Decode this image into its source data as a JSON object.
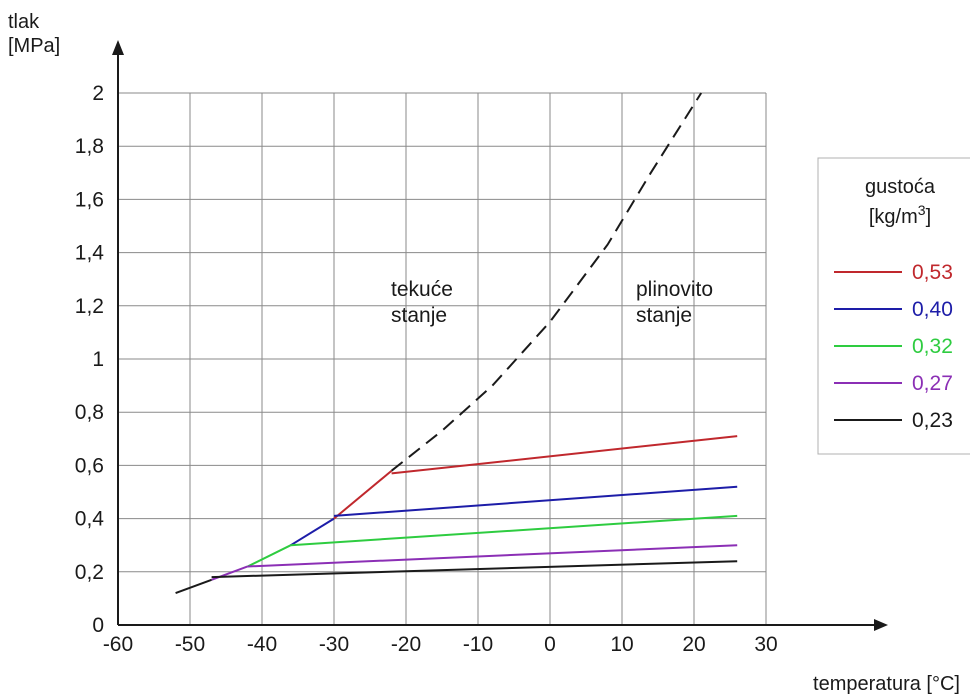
{
  "chart_data": {
    "type": "line",
    "ylabel_line1": "tlak",
    "ylabel_line2": "[MPa]",
    "xlabel": "temperatura [°C]",
    "xlim": [
      -60,
      30
    ],
    "ylim": [
      0,
      2
    ],
    "grid": true,
    "x_ticks": [
      "-60",
      "-50",
      "-40",
      "-30",
      "-20",
      "-10",
      "0",
      "10",
      "20",
      "30"
    ],
    "y_ticks": [
      "0",
      "0,2",
      "0,4",
      "0,6",
      "0,8",
      "1",
      "1,2",
      "1,4",
      "1,6",
      "1,8",
      "2"
    ],
    "regions": {
      "liquid_line1": "tekuće",
      "liquid_line2": "stanje",
      "gas_line1": "plinovito",
      "gas_line2": "stanje"
    },
    "legend": {
      "title_line1": "gustoća",
      "title_line2": "[kg/m",
      "title_sup": "3",
      "title_end": "]",
      "placement": "right"
    },
    "saturation_curve": {
      "x": [
        -52,
        -47,
        -42,
        -36,
        -30,
        -22,
        -15,
        -8,
        0,
        8,
        14,
        21
      ],
      "y": [
        0.12,
        0.17,
        0.22,
        0.3,
        0.4,
        0.58,
        0.73,
        0.9,
        1.14,
        1.43,
        1.7,
        2.0
      ]
    },
    "series": [
      {
        "name": "0,53",
        "color": "#c0282d",
        "x": [
          -22,
          26
        ],
        "y": [
          0.57,
          0.71
        ]
      },
      {
        "name": "0,40",
        "color": "#1d1da8",
        "x": [
          -30,
          26
        ],
        "y": [
          0.41,
          0.52
        ]
      },
      {
        "name": "0,32",
        "color": "#2ecc40",
        "x": [
          -36,
          26
        ],
        "y": [
          0.3,
          0.41
        ]
      },
      {
        "name": "0,27",
        "color": "#8b2fb5",
        "x": [
          -42,
          26
        ],
        "y": [
          0.22,
          0.3
        ]
      },
      {
        "name": "0,23",
        "color": "#1a1a1a",
        "x": [
          -47,
          26
        ],
        "y": [
          0.18,
          0.24
        ]
      }
    ]
  }
}
